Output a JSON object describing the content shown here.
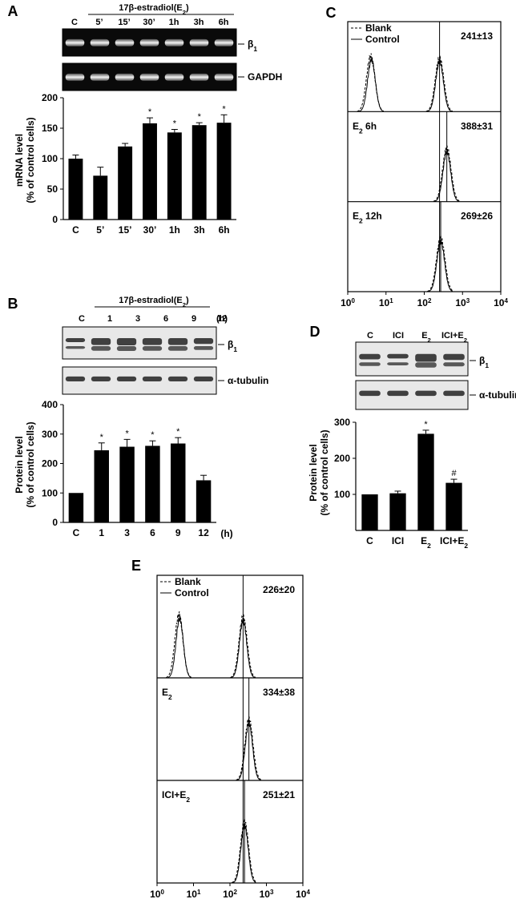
{
  "chart_data": [
    {
      "panel": "A",
      "type": "bar",
      "header": "17β-estradiol(E2)",
      "gel_labels": [
        "β1",
        "GAPDH"
      ],
      "categories": [
        "C",
        "5’",
        "15’",
        "30’",
        "1h",
        "3h",
        "6h"
      ],
      "values": [
        100,
        72,
        120,
        158,
        143,
        155,
        159
      ],
      "errors": [
        6,
        14,
        5,
        9,
        5,
        4,
        13
      ],
      "significant": [
        false,
        false,
        false,
        true,
        true,
        true,
        true
      ],
      "ylabel": "mRNA level\n(% of control cells)",
      "yticks": [
        0,
        50,
        100,
        150,
        200
      ],
      "ylim": [
        0,
        200
      ]
    },
    {
      "panel": "B",
      "type": "bar",
      "header": "17β-estradiol(E2)",
      "gel_labels": [
        "β1",
        "α-tubulin"
      ],
      "categories": [
        "C",
        "1",
        "3",
        "6",
        "9",
        "12"
      ],
      "unit": "(h)",
      "values": [
        100,
        245,
        257,
        260,
        268,
        143
      ],
      "errors": [
        0,
        25,
        25,
        17,
        20,
        17
      ],
      "significant": [
        false,
        true,
        true,
        true,
        true,
        false
      ],
      "ylabel": "Protein level\n(% of control cells)",
      "yticks": [
        0,
        100,
        200,
        300,
        400
      ],
      "ylim": [
        0,
        400
      ]
    },
    {
      "panel": "C",
      "type": "histogram",
      "legend": [
        "Blank",
        "Control"
      ],
      "subpanels": [
        {
          "label": "",
          "value": "241±13",
          "peak_log": 2.4
        },
        {
          "label": "E2 6h",
          "value": "388±31",
          "peak_log": 2.59
        },
        {
          "label": "E2 12h",
          "value": "269±26",
          "peak_log": 2.43
        }
      ],
      "blank_peak_log": 0.6,
      "xticks": [
        "10^0",
        "10^1",
        "10^2",
        "10^3",
        "10^4"
      ],
      "xscale": "log"
    },
    {
      "panel": "D",
      "type": "bar",
      "gel_labels": [
        "β1",
        "α-tubulin"
      ],
      "categories": [
        "C",
        "ICI",
        "E2",
        "ICI+E2"
      ],
      "values": [
        100,
        103,
        268,
        132
      ],
      "errors": [
        0,
        6,
        10,
        10
      ],
      "markers": [
        "",
        "",
        "*",
        "#"
      ],
      "ylabel": "Protein level\n(% of control cells)",
      "yticks": [
        100,
        200,
        300
      ],
      "ylim": [
        0,
        300
      ]
    },
    {
      "panel": "E",
      "type": "histogram",
      "legend": [
        "Blank",
        "Control"
      ],
      "subpanels": [
        {
          "label": "",
          "value": "226±20",
          "peak_log": 2.36
        },
        {
          "label": "E2",
          "value": "334±38",
          "peak_log": 2.52
        },
        {
          "label": "ICI+E2",
          "value": "251±21",
          "peak_log": 2.4
        }
      ],
      "blank_peak_log": 0.6,
      "xticks": [
        "10^0",
        "10^1",
        "10^2",
        "10^3",
        "10^4"
      ],
      "xscale": "log"
    }
  ]
}
